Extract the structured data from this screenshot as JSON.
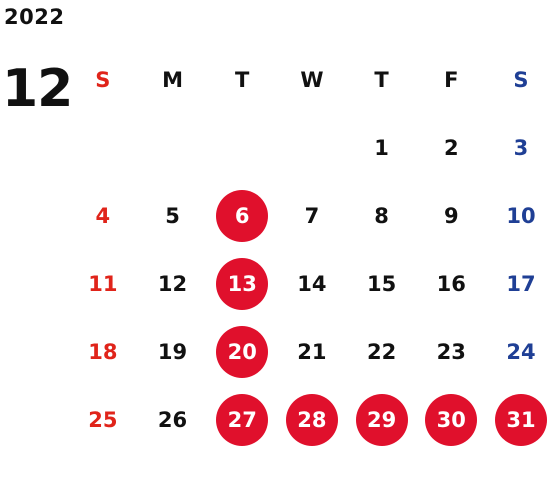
{
  "calendar": {
    "year": "2022",
    "month": "12",
    "weekdays": [
      "S",
      "M",
      "T",
      "W",
      "T",
      "F",
      "S"
    ],
    "weeks": [
      [
        "",
        "",
        "",
        "",
        "1",
        "2",
        "3"
      ],
      [
        "4",
        "5",
        "6",
        "7",
        "8",
        "9",
        "10"
      ],
      [
        "11",
        "12",
        "13",
        "14",
        "15",
        "16",
        "17"
      ],
      [
        "18",
        "19",
        "20",
        "21",
        "22",
        "23",
        "24"
      ],
      [
        "25",
        "26",
        "27",
        "28",
        "29",
        "30",
        "31"
      ]
    ],
    "highlighted_days": [
      "6",
      "13",
      "20",
      "27",
      "28",
      "29",
      "30",
      "31"
    ]
  },
  "colors": {
    "sunday": "#e0241a",
    "saturday": "#1f3f95",
    "highlight_circle": "#e0102c",
    "text": "#111111"
  }
}
